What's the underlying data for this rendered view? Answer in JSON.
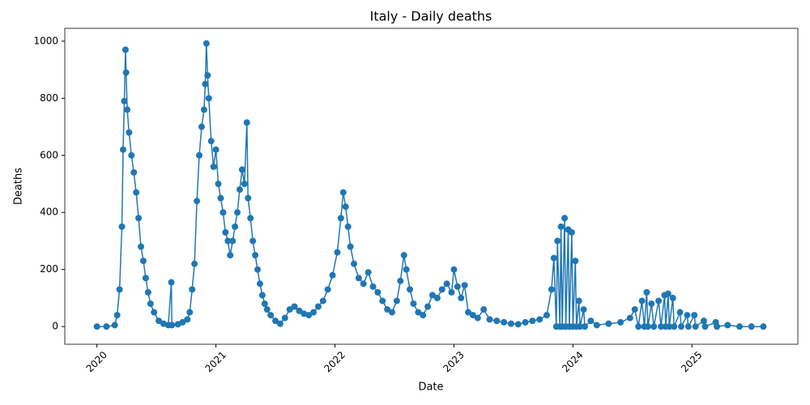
{
  "chart_data": {
    "type": "line",
    "title": "Italy - Daily deaths",
    "xlabel": "Date",
    "ylabel": "Deaths",
    "x": [
      2020.0,
      2020.08,
      2020.15,
      2020.17,
      2020.19,
      2020.21,
      2020.22,
      2020.23,
      2020.24,
      2020.245,
      2020.255,
      2020.27,
      2020.29,
      2020.31,
      2020.33,
      2020.35,
      2020.37,
      2020.39,
      2020.41,
      2020.43,
      2020.45,
      2020.48,
      2020.52,
      2020.56,
      2020.6,
      2020.625,
      2020.63,
      2020.68,
      2020.72,
      2020.76,
      2020.78,
      2020.8,
      2020.82,
      2020.84,
      2020.86,
      2020.88,
      2020.9,
      2020.91,
      2020.92,
      2020.93,
      2020.94,
      2020.96,
      2020.98,
      2021.0,
      2021.02,
      2021.04,
      2021.06,
      2021.08,
      2021.1,
      2021.12,
      2021.14,
      2021.16,
      2021.18,
      2021.2,
      2021.22,
      2021.24,
      2021.26,
      2021.27,
      2021.29,
      2021.31,
      2021.33,
      2021.35,
      2021.37,
      2021.39,
      2021.41,
      2021.43,
      2021.46,
      2021.5,
      2021.54,
      2021.58,
      2021.62,
      2021.66,
      2021.7,
      2021.74,
      2021.78,
      2021.82,
      2021.86,
      2021.9,
      2021.94,
      2021.98,
      2022.02,
      2022.05,
      2022.07,
      2022.09,
      2022.11,
      2022.13,
      2022.16,
      2022.2,
      2022.24,
      2022.28,
      2022.32,
      2022.36,
      2022.4,
      2022.44,
      2022.48,
      2022.52,
      2022.55,
      2022.58,
      2022.6,
      2022.63,
      2022.66,
      2022.7,
      2022.74,
      2022.78,
      2022.82,
      2022.86,
      2022.9,
      2022.94,
      2022.98,
      2023.0,
      2023.03,
      2023.06,
      2023.09,
      2023.12,
      2023.16,
      2023.2,
      2023.25,
      2023.3,
      2023.36,
      2023.42,
      2023.48,
      2023.54,
      2023.6,
      2023.66,
      2023.72,
      2023.78,
      2023.82,
      2023.84,
      2023.86,
      2023.87,
      2023.89,
      2023.9,
      2023.91,
      2023.93,
      2023.94,
      2023.96,
      2023.97,
      2023.99,
      2024.0,
      2024.02,
      2024.03,
      2024.05,
      2024.06,
      2024.09,
      2024.1,
      2024.15,
      2024.2,
      2024.3,
      2024.4,
      2024.48,
      2024.52,
      2024.55,
      2024.58,
      2024.6,
      2024.62,
      2024.63,
      2024.66,
      2024.68,
      2024.72,
      2024.74,
      2024.77,
      2024.78,
      2024.8,
      2024.81,
      2024.84,
      2024.85,
      2024.9,
      2024.91,
      2024.96,
      2024.97,
      2025.02,
      2025.03,
      2025.1,
      2025.11,
      2025.2,
      2025.21,
      2025.3,
      2025.4,
      2025.5,
      2025.6
    ],
    "series": [
      {
        "name": "Deaths",
        "color": "#1f77b4",
        "values": [
          0,
          0,
          5,
          40,
          130,
          350,
          620,
          790,
          970,
          890,
          760,
          680,
          600,
          540,
          470,
          380,
          280,
          230,
          170,
          120,
          80,
          50,
          20,
          10,
          5,
          155,
          5,
          8,
          15,
          25,
          50,
          130,
          220,
          440,
          600,
          700,
          760,
          850,
          992,
          880,
          800,
          650,
          560,
          620,
          500,
          450,
          400,
          330,
          300,
          250,
          300,
          350,
          400,
          480,
          550,
          500,
          715,
          450,
          380,
          300,
          250,
          200,
          150,
          110,
          80,
          60,
          40,
          20,
          10,
          30,
          60,
          70,
          55,
          45,
          40,
          50,
          70,
          90,
          130,
          180,
          260,
          380,
          470,
          420,
          350,
          280,
          220,
          170,
          150,
          190,
          140,
          120,
          90,
          60,
          50,
          90,
          160,
          250,
          200,
          130,
          80,
          50,
          40,
          70,
          110,
          100,
          130,
          150,
          120,
          200,
          140,
          100,
          145,
          50,
          40,
          30,
          60,
          25,
          20,
          15,
          10,
          8,
          15,
          20,
          25,
          40,
          130,
          240,
          0,
          300,
          0,
          350,
          0,
          380,
          0,
          340,
          0,
          330,
          0,
          230,
          0,
          90,
          0,
          60,
          0,
          20,
          5,
          10,
          15,
          30,
          60,
          0,
          90,
          0,
          120,
          0,
          80,
          0,
          90,
          0,
          110,
          0,
          115,
          0,
          100,
          0,
          50,
          0,
          40,
          0,
          40,
          0,
          20,
          0,
          15,
          0,
          5,
          0,
          0,
          0
        ]
      }
    ],
    "xlim": [
      2019.73,
      2025.89
    ],
    "xticks": [
      2020,
      2021,
      2022,
      2023,
      2024,
      2025
    ],
    "ylim": [
      -62,
      1045
    ],
    "yticks": [
      0,
      200,
      400,
      600,
      800,
      1000
    ]
  }
}
